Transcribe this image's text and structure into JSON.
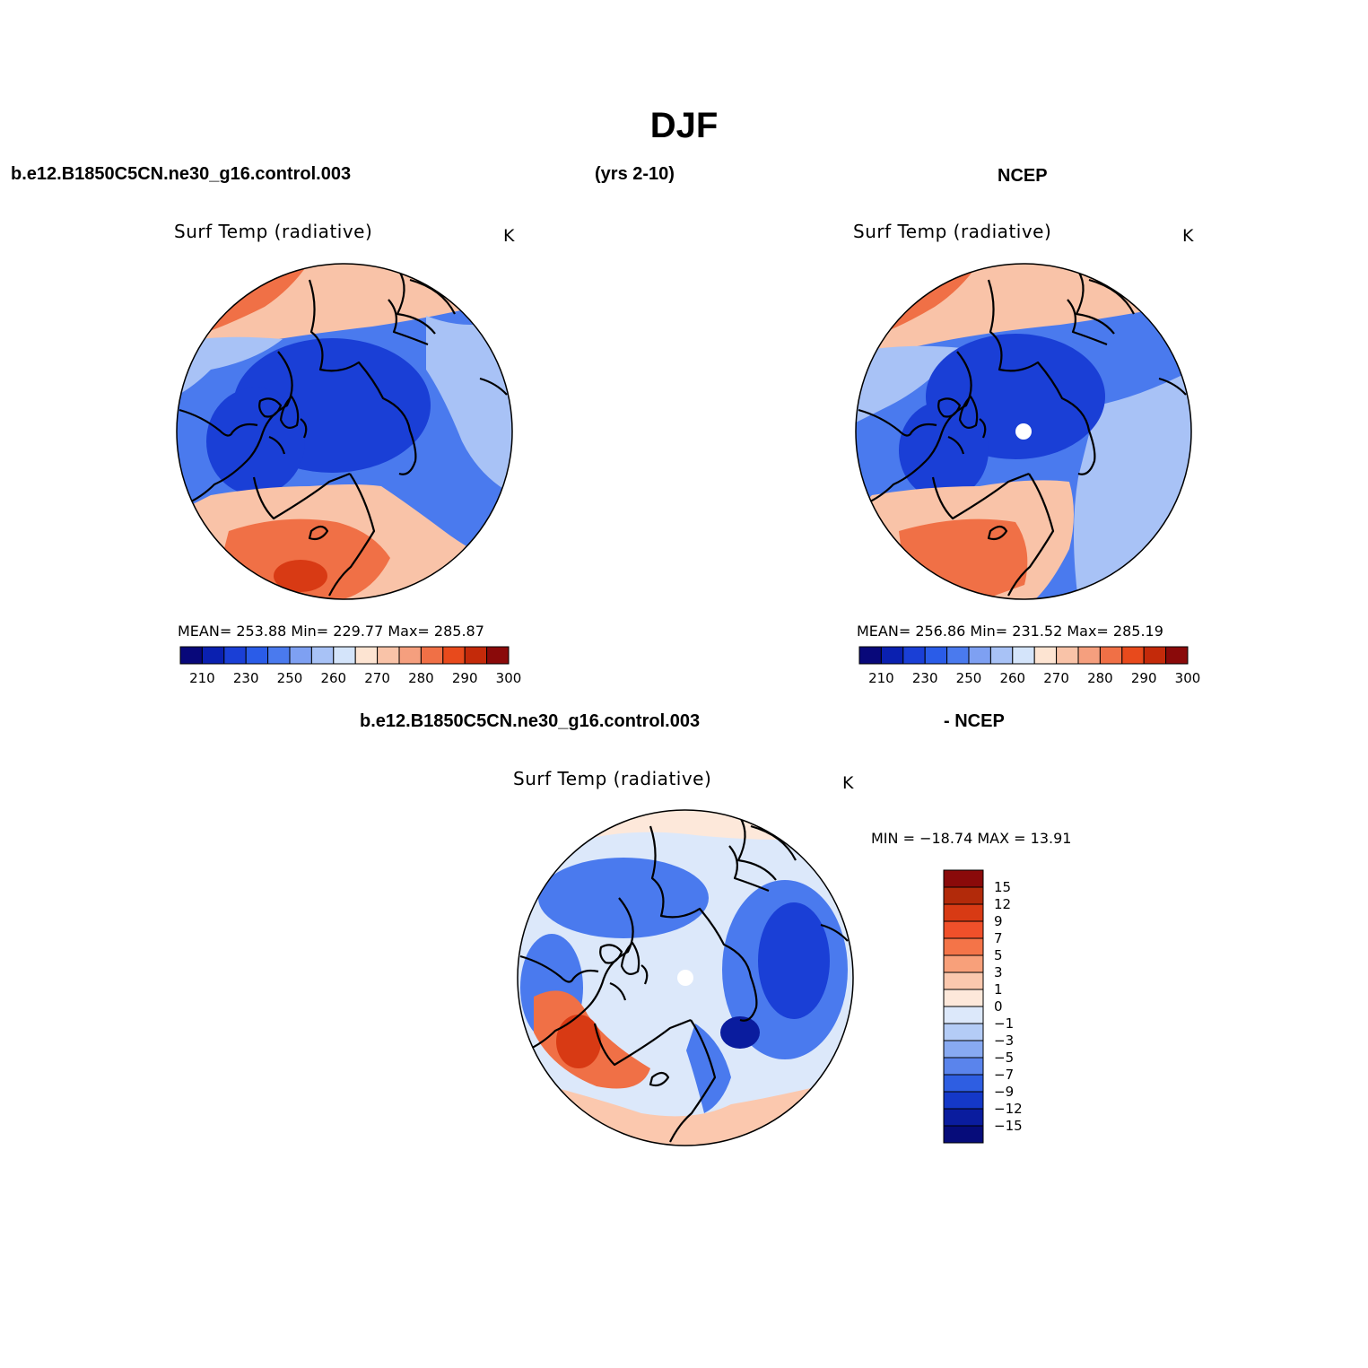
{
  "title": "DJF",
  "header": {
    "case": "b.e12.B1850C5CN.ne30_g16.control.003",
    "years": "(yrs 2-10)",
    "obs": "NCEP"
  },
  "diff_header": {
    "case": "b.e12.B1850C5CN.ne30_g16.control.003",
    "obs": "- NCEP"
  },
  "panels": {
    "model": {
      "title": "Surf Temp (radiative)",
      "units": "K",
      "stats": "MEAN= 253.88   Min= 229.77   Max= 285.87"
    },
    "obs": {
      "title": "Surf Temp (radiative)",
      "units": "K",
      "stats": "MEAN= 256.86   Min= 231.52   Max= 285.19"
    },
    "diff": {
      "title": "Surf Temp (radiative)",
      "units": "K",
      "stats": "MIN = −18.74 MAX =   13.91"
    }
  },
  "colorbars": {
    "abs": {
      "colors": [
        "#08087a",
        "#0a20b0",
        "#1a3fd6",
        "#2a5ce8",
        "#4a7aee",
        "#7ea0f2",
        "#a8c2f6",
        "#d4e4fa",
        "#fde4d2",
        "#f9c3a8",
        "#f59f7e",
        "#f07046",
        "#e84a1c",
        "#c42a0a",
        "#8a0a0a"
      ],
      "labels": [
        "210",
        "230",
        "250",
        "260",
        "270",
        "280",
        "290",
        "300"
      ]
    },
    "diff": {
      "colors": [
        "#8a0a0a",
        "#b22a0a",
        "#d83a14",
        "#f0502a",
        "#f47448",
        "#f8a07a",
        "#fbc8ae",
        "#fde8da",
        "#dce8fa",
        "#b4ccf6",
        "#88aaf2",
        "#5a84ec",
        "#2e5ee2",
        "#1438c8",
        "#0a1c9e",
        "#060c7a"
      ],
      "labels": [
        "15",
        "12",
        "9",
        "7",
        "5",
        "3",
        "1",
        "0",
        "−1",
        "−3",
        "−5",
        "−7",
        "−9",
        "−12",
        "−15"
      ]
    }
  },
  "colors": {
    "cold_deep": "#1a3fd6",
    "cold": "#4a7aee",
    "cold_light": "#a8c2f6",
    "warm_light": "#f9c3a8",
    "warm": "#f07046",
    "warm_deep": "#d83a14",
    "pole_mask": "#ffffff"
  }
}
